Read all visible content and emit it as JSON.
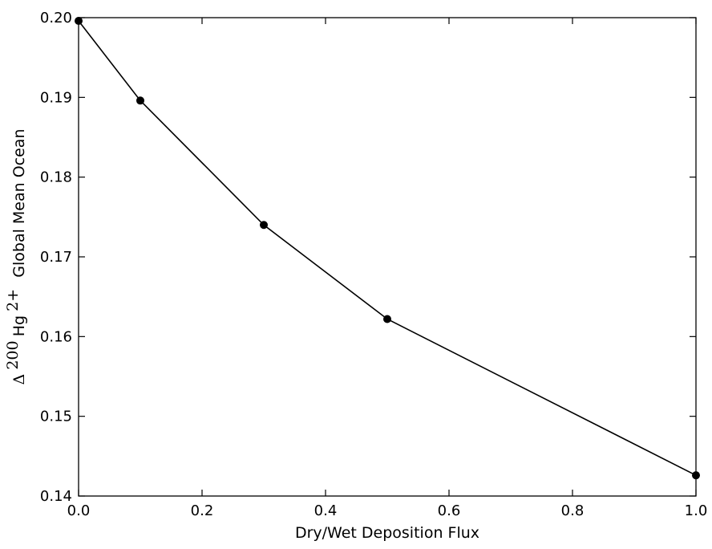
{
  "chart_data": {
    "type": "line",
    "x": [
      0.0,
      0.1,
      0.3,
      0.5,
      1.0
    ],
    "series": [
      {
        "values": [
          0.1996,
          0.1896,
          0.174,
          0.1622,
          0.1426
        ],
        "color": "#000000",
        "marker": "circle"
      }
    ],
    "xlim": [
      0.0,
      1.0
    ],
    "ylim": [
      0.14,
      0.2
    ],
    "xticks": [
      "0.0",
      "0.2",
      "0.4",
      "0.6",
      "0.8",
      "1.0"
    ],
    "xtick_values": [
      0.0,
      0.2,
      0.4,
      0.6,
      0.8,
      1.0
    ],
    "yticks": [
      "0.14",
      "0.15",
      "0.16",
      "0.17",
      "0.18",
      "0.19",
      "0.20"
    ],
    "ytick_values": [
      0.14,
      0.15,
      0.16,
      0.17,
      0.18,
      0.19,
      0.2
    ],
    "xlabel": "Dry/Wet Deposition Flux",
    "ylabel": {
      "delta": "Δ",
      "mass_number": "200",
      "element": "Hg",
      "charge": "2+",
      "rest": "Global Mean Ocean"
    },
    "grid": false,
    "legend": "none"
  }
}
